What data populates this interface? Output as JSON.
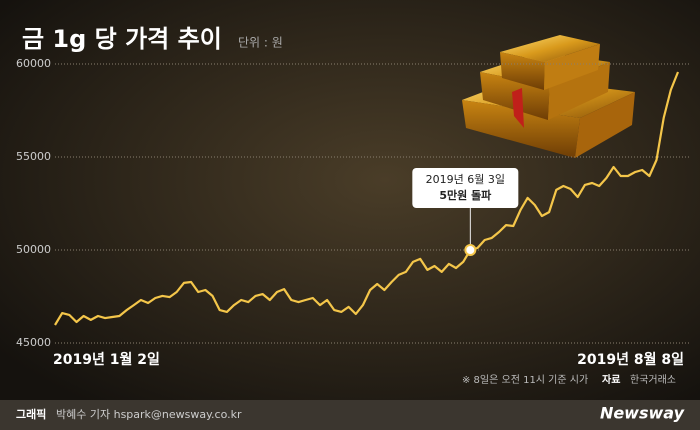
{
  "chart_data": {
    "type": "line",
    "title": "금 1g 당 가격 추이",
    "unit": "단위 : 원",
    "categories": [
      "2019년 1월 2일",
      null,
      null,
      null,
      null,
      null,
      null,
      null,
      null,
      null,
      null,
      null,
      null,
      null,
      null,
      null,
      null,
      null,
      null,
      null,
      null,
      null,
      null,
      null,
      null,
      null,
      null,
      null,
      null,
      null,
      null,
      null,
      null,
      null,
      null,
      null,
      null,
      null,
      null,
      null,
      null,
      null,
      null,
      null,
      null,
      null,
      null,
      null,
      null,
      null,
      null,
      null,
      null,
      null,
      null,
      null,
      null,
      null,
      null,
      null,
      null,
      null,
      null,
      null,
      null,
      null,
      null,
      null,
      null,
      null,
      null,
      null,
      null,
      null,
      null,
      null,
      null,
      null,
      null,
      null,
      null,
      null,
      null,
      null,
      null,
      null,
      null,
      "2019년 8월 8일"
    ],
    "series": [
      {
        "name": "금 1g 가격",
        "color": "#f4c64a",
        "values": [
          45970,
          46610,
          46510,
          46130,
          46450,
          46240,
          46450,
          46340,
          46400,
          46450,
          46770,
          47040,
          47310,
          47150,
          47420,
          47530,
          47470,
          47740,
          48230,
          48280,
          47740,
          47850,
          47530,
          46770,
          46670,
          47040,
          47310,
          47200,
          47530,
          47630,
          47310,
          47740,
          47900,
          47310,
          47200,
          47310,
          47420,
          47040,
          47310,
          46770,
          46670,
          46940,
          46560,
          47040,
          47850,
          48170,
          47850,
          48280,
          48660,
          48820,
          49360,
          49520,
          48930,
          49140,
          48820,
          49250,
          49030,
          49360,
          50000,
          50110,
          50540,
          50650,
          50970,
          51340,
          51290,
          52150,
          52800,
          52420,
          51830,
          52040,
          53230,
          53440,
          53280,
          52850,
          53500,
          53600,
          53440,
          53870,
          54460,
          53980,
          53980,
          54190,
          54300,
          53980,
          54840,
          57100,
          58600,
          59570
        ]
      }
    ],
    "ylim": [
      45000,
      60000
    ],
    "yticks": [
      45000,
      50000,
      55000,
      60000
    ],
    "grid": true,
    "annotation": {
      "date": "2019년 6월 3일",
      "text": "5만원 돌파"
    },
    "note": "※ 8일은 오전 11시 기준 시가",
    "source_label": "자료",
    "source": "한국거래소"
  },
  "footer": {
    "credit_label": "그래픽",
    "credit": "박혜수 기자 hspark@newsway.co.kr",
    "brand": "Newsway"
  }
}
